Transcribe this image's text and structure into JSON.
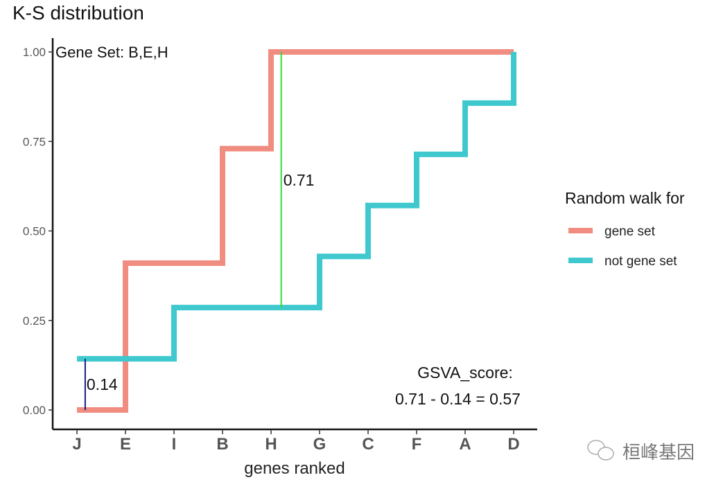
{
  "chart_data": {
    "type": "line",
    "step": true,
    "title": "K-S distribution",
    "xlabel": "genes ranked",
    "ylabel": "",
    "categories": [
      "J",
      "E",
      "I",
      "B",
      "H",
      "G",
      "C",
      "F",
      "A",
      "D"
    ],
    "ylim": [
      0,
      1
    ],
    "yticks": [
      "0.00",
      "0.25",
      "0.50",
      "0.75",
      "1.00"
    ],
    "ytick_values": [
      0,
      0.25,
      0.5,
      0.75,
      1.0
    ],
    "grid": false,
    "series": [
      {
        "name": "gene set",
        "color": "#F08C80",
        "values": [
          0,
          0.41,
          0.41,
          0.73,
          1.0,
          1.0,
          1.0,
          1.0,
          1.0,
          1.0
        ]
      },
      {
        "name": "not gene set",
        "color": "#3FC9CF",
        "values": [
          0.143,
          0.143,
          0.286,
          0.286,
          0.286,
          0.429,
          0.571,
          0.714,
          0.857,
          1.0
        ]
      }
    ],
    "legend": {
      "title": "Random walk for",
      "placement": "right"
    },
    "annotations": {
      "gene_set_label": "Gene Set: B,E,H",
      "max_dev": {
        "label": "0.71",
        "color": "#33DD33",
        "x_between": [
          "H",
          "G"
        ],
        "from": 0.286,
        "to": 1.0
      },
      "min_dev": {
        "label": "0.14",
        "color": "#1A1A80",
        "x_between": [
          "J",
          "E"
        ],
        "from": 0,
        "to": 0.143
      },
      "score_title": "GSVA_score:",
      "score_formula": "0.71 - 0.14 = 0.57"
    }
  },
  "watermark": {
    "text": "桓峰基因",
    "icon": "wechat-icon"
  }
}
